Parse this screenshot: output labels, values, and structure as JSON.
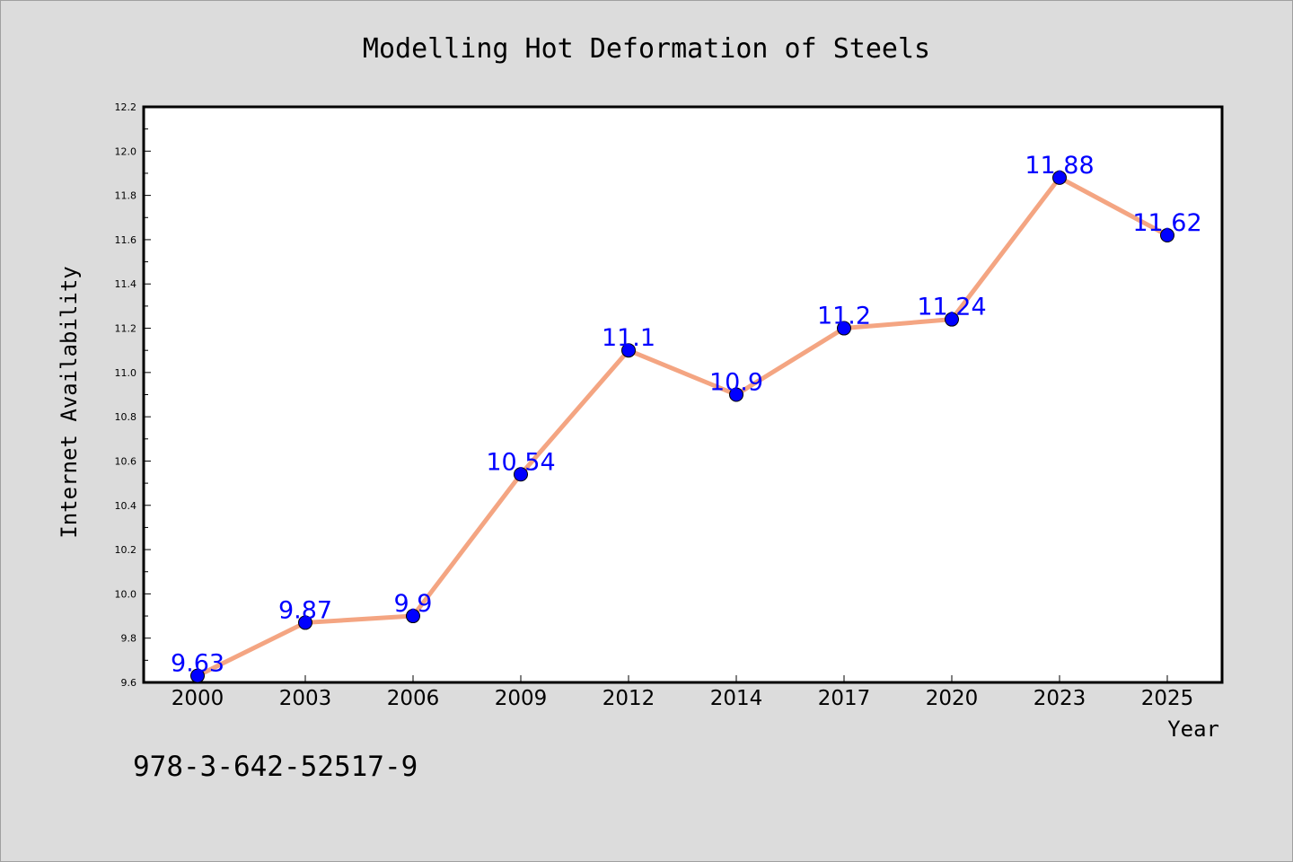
{
  "chart_data": {
    "type": "line",
    "title": "Modelling Hot Deformation of Steels",
    "xlabel": "Year",
    "ylabel": "Internet Availability",
    "categories": [
      "2000",
      "2003",
      "2006",
      "2009",
      "2012",
      "2014",
      "2017",
      "2020",
      "2023",
      "2025"
    ],
    "values": [
      9.63,
      9.87,
      9.9,
      10.54,
      11.1,
      10.9,
      11.2,
      11.24,
      11.88,
      11.62
    ],
    "data_labels": [
      "9.63",
      "9.87",
      "9.9",
      "10.54",
      "11.1",
      "10.9",
      "11.2",
      "11.24",
      "11.88",
      "11.62"
    ],
    "ylim": [
      9.6,
      12.2
    ],
    "yticks": [
      "9.6",
      "9.8",
      "10.0",
      "10.2",
      "10.4",
      "10.6",
      "10.8",
      "11.0",
      "11.2",
      "11.4",
      "11.6",
      "11.8",
      "12.0",
      "12.2"
    ],
    "grid": false,
    "legend": "none",
    "colors": {
      "line": "#f4a582",
      "marker": "#0000ff",
      "label": "#0000ff",
      "background": "#dcdcdc",
      "plot_background": "#ffffff"
    }
  },
  "footer": {
    "text": "978-3-642-52517-9"
  }
}
